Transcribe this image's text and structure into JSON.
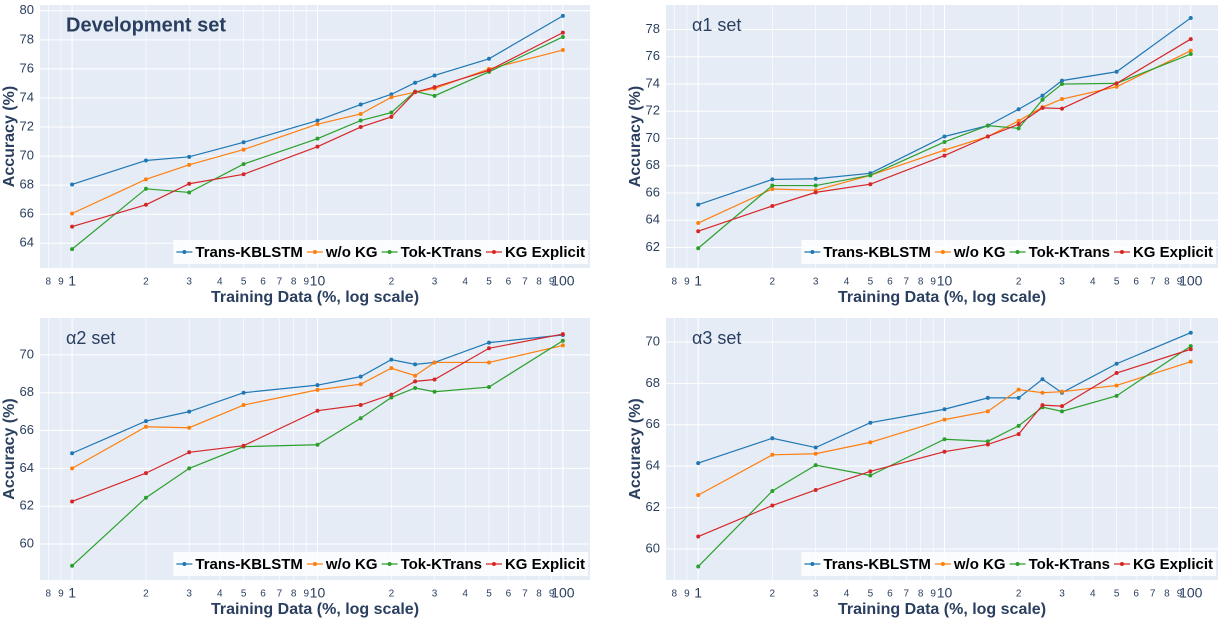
{
  "chart_data": [
    {
      "type": "line",
      "title": "Development set",
      "x_label": "Training Data (%, log scale)",
      "y_label": "Accuracy (%)",
      "xscale": "log",
      "grid": true,
      "legend": "lower right",
      "x": [
        1,
        2,
        3,
        5,
        10,
        15,
        20,
        25,
        30,
        50,
        100
      ],
      "xlim": [
        0.74,
        129
      ],
      "xticks": [
        {
          "value": 0.8,
          "label": "8"
        },
        {
          "value": 0.9,
          "label": "9"
        },
        1,
        {
          "value": 2,
          "label": "2"
        },
        {
          "value": 3,
          "label": "3"
        },
        {
          "value": 4,
          "label": "4"
        },
        {
          "value": 5,
          "label": "5"
        },
        {
          "value": 6,
          "label": "6"
        },
        {
          "value": 7,
          "label": "7"
        },
        {
          "value": 8,
          "label": "8"
        },
        {
          "value": 9,
          "label": "9"
        },
        10,
        {
          "value": 20,
          "label": "2"
        },
        {
          "value": 30,
          "label": "3"
        },
        {
          "value": 40,
          "label": "4"
        },
        {
          "value": 50,
          "label": "5"
        },
        {
          "value": 60,
          "label": "6"
        },
        {
          "value": 70,
          "label": "7"
        },
        {
          "value": 80,
          "label": "8"
        },
        {
          "value": 90,
          "label": "9"
        },
        100
      ],
      "ylim": [
        62.3,
        80.4
      ],
      "yticks": [
        64,
        66,
        68,
        70,
        72,
        74,
        76,
        78,
        80
      ],
      "series": [
        {
          "name": "Trans-KBLSTM",
          "color": "#1f77b4",
          "values": [
            68.05,
            69.7,
            69.95,
            70.95,
            72.45,
            73.55,
            74.25,
            75.05,
            75.55,
            76.7,
            79.65
          ]
        },
        {
          "name": "w/o KG",
          "color": "#ff7f0e",
          "values": [
            66.05,
            68.4,
            69.4,
            70.45,
            72.2,
            72.9,
            74.05,
            74.4,
            74.65,
            76.0,
            77.3
          ]
        },
        {
          "name": "Tok-KTrans",
          "color": "#2ca02c",
          "values": [
            63.6,
            67.75,
            67.5,
            69.45,
            71.2,
            72.45,
            73.0,
            74.45,
            74.15,
            75.8,
            78.2
          ]
        },
        {
          "name": "KG Explicit",
          "color": "#d62728",
          "values": [
            65.15,
            66.65,
            68.1,
            68.75,
            70.65,
            72.0,
            72.7,
            74.4,
            74.75,
            75.9,
            78.5
          ]
        }
      ]
    },
    {
      "type": "line",
      "title": "α1 set",
      "x_label": "Training Data (%, log scale)",
      "y_label": "Accuracy (%)",
      "xscale": "log",
      "grid": true,
      "legend": "lower right",
      "x": [
        1,
        2,
        3,
        5,
        10,
        15,
        20,
        25,
        30,
        50,
        100
      ],
      "xlim": [
        0.74,
        129
      ],
      "xticks": [
        {
          "value": 0.8,
          "label": "8"
        },
        {
          "value": 0.9,
          "label": "9"
        },
        1,
        {
          "value": 2,
          "label": "2"
        },
        {
          "value": 3,
          "label": "3"
        },
        {
          "value": 4,
          "label": "4"
        },
        {
          "value": 5,
          "label": "5"
        },
        {
          "value": 6,
          "label": "6"
        },
        {
          "value": 7,
          "label": "7"
        },
        {
          "value": 8,
          "label": "8"
        },
        {
          "value": 9,
          "label": "9"
        },
        10,
        {
          "value": 20,
          "label": "2"
        },
        {
          "value": 30,
          "label": "3"
        },
        {
          "value": 40,
          "label": "4"
        },
        {
          "value": 50,
          "label": "5"
        },
        {
          "value": 60,
          "label": "6"
        },
        {
          "value": 70,
          "label": "7"
        },
        {
          "value": 80,
          "label": "8"
        },
        {
          "value": 90,
          "label": "9"
        },
        100
      ],
      "ylim": [
        60.5,
        79.8
      ],
      "yticks": [
        62,
        64,
        66,
        68,
        70,
        72,
        74,
        76,
        78
      ],
      "series": [
        {
          "name": "Trans-KBLSTM",
          "color": "#1f77b4",
          "values": [
            65.15,
            67.0,
            67.05,
            67.45,
            70.15,
            70.95,
            72.15,
            73.15,
            74.25,
            74.9,
            78.85
          ]
        },
        {
          "name": "w/o KG",
          "color": "#ff7f0e",
          "values": [
            63.8,
            66.3,
            66.2,
            67.3,
            69.15,
            70.15,
            71.3,
            72.3,
            72.9,
            73.8,
            76.45
          ]
        },
        {
          "name": "Tok-KTrans",
          "color": "#2ca02c",
          "values": [
            61.95,
            66.55,
            66.55,
            67.3,
            69.75,
            70.95,
            70.75,
            72.85,
            74.0,
            74.05,
            76.2
          ]
        },
        {
          "name": "KG Explicit",
          "color": "#d62728",
          "values": [
            63.2,
            65.05,
            66.05,
            66.65,
            68.75,
            70.15,
            71.05,
            72.25,
            72.2,
            74.05,
            77.3
          ]
        }
      ]
    },
    {
      "type": "line",
      "title": "α2 set",
      "x_label": "Training Data (%, log scale)",
      "y_label": "Accuracy (%)",
      "xscale": "log",
      "grid": true,
      "legend": "lower right",
      "x": [
        1,
        2,
        3,
        5,
        10,
        15,
        20,
        25,
        30,
        50,
        100
      ],
      "xlim": [
        0.74,
        129
      ],
      "xticks": [
        {
          "value": 0.8,
          "label": "8"
        },
        {
          "value": 0.9,
          "label": "9"
        },
        1,
        {
          "value": 2,
          "label": "2"
        },
        {
          "value": 3,
          "label": "3"
        },
        {
          "value": 4,
          "label": "4"
        },
        {
          "value": 5,
          "label": "5"
        },
        {
          "value": 6,
          "label": "6"
        },
        {
          "value": 7,
          "label": "7"
        },
        {
          "value": 8,
          "label": "8"
        },
        {
          "value": 9,
          "label": "9"
        },
        10,
        {
          "value": 20,
          "label": "2"
        },
        {
          "value": 30,
          "label": "3"
        },
        {
          "value": 40,
          "label": "4"
        },
        {
          "value": 50,
          "label": "5"
        },
        {
          "value": 60,
          "label": "6"
        },
        {
          "value": 70,
          "label": "7"
        },
        {
          "value": 80,
          "label": "8"
        },
        {
          "value": 90,
          "label": "9"
        },
        100
      ],
      "ylim": [
        58.1,
        71.95
      ],
      "yticks": [
        60,
        62,
        64,
        66,
        68,
        70
      ],
      "series": [
        {
          "name": "Trans-KBLSTM",
          "color": "#1f77b4",
          "values": [
            64.8,
            66.5,
            67.0,
            68.0,
            68.4,
            68.85,
            69.75,
            69.5,
            69.6,
            70.65,
            71.05
          ]
        },
        {
          "name": "w/o KG",
          "color": "#ff7f0e",
          "values": [
            64.0,
            66.2,
            66.15,
            67.35,
            68.15,
            68.45,
            69.3,
            68.9,
            69.6,
            69.6,
            70.5
          ]
        },
        {
          "name": "Tok-KTrans",
          "color": "#2ca02c",
          "values": [
            58.85,
            62.45,
            64.0,
            65.15,
            65.25,
            66.65,
            67.75,
            68.25,
            68.05,
            68.3,
            70.75
          ]
        },
        {
          "name": "KG Explicit",
          "color": "#d62728",
          "values": [
            62.25,
            63.75,
            64.85,
            65.2,
            67.05,
            67.35,
            67.9,
            68.6,
            68.7,
            70.35,
            71.1
          ]
        }
      ]
    },
    {
      "type": "line",
      "title": "α3 set",
      "x_label": "Training Data (%, log scale)",
      "y_label": "Accuracy (%)",
      "xscale": "log",
      "grid": true,
      "legend": "lower right",
      "x": [
        1,
        2,
        3,
        5,
        10,
        15,
        20,
        25,
        30,
        50,
        100
      ],
      "xlim": [
        0.74,
        129
      ],
      "xticks": [
        {
          "value": 0.8,
          "label": "8"
        },
        {
          "value": 0.9,
          "label": "9"
        },
        1,
        {
          "value": 2,
          "label": "2"
        },
        {
          "value": 3,
          "label": "3"
        },
        {
          "value": 4,
          "label": "4"
        },
        {
          "value": 5,
          "label": "5"
        },
        {
          "value": 6,
          "label": "6"
        },
        {
          "value": 7,
          "label": "7"
        },
        {
          "value": 8,
          "label": "8"
        },
        {
          "value": 9,
          "label": "9"
        },
        10,
        {
          "value": 20,
          "label": "2"
        },
        {
          "value": 30,
          "label": "3"
        },
        {
          "value": 40,
          "label": "4"
        },
        {
          "value": 50,
          "label": "5"
        },
        {
          "value": 60,
          "label": "6"
        },
        {
          "value": 70,
          "label": "7"
        },
        {
          "value": 80,
          "label": "8"
        },
        {
          "value": 90,
          "label": "9"
        },
        100
      ],
      "ylim": [
        58.5,
        71.16
      ],
      "yticks": [
        60,
        62,
        64,
        66,
        68,
        70
      ],
      "series": [
        {
          "name": "Trans-KBLSTM",
          "color": "#1f77b4",
          "values": [
            64.15,
            65.35,
            64.9,
            66.1,
            66.75,
            67.3,
            67.3,
            68.2,
            67.55,
            68.95,
            70.45
          ]
        },
        {
          "name": "w/o KG",
          "color": "#ff7f0e",
          "values": [
            62.6,
            64.55,
            64.6,
            65.15,
            66.25,
            66.65,
            67.7,
            67.55,
            67.6,
            67.9,
            69.05
          ]
        },
        {
          "name": "Tok-KTrans",
          "color": "#2ca02c",
          "values": [
            59.15,
            62.8,
            64.05,
            63.55,
            65.3,
            65.2,
            65.95,
            66.85,
            66.65,
            67.4,
            69.8
          ]
        },
        {
          "name": "KG Explicit",
          "color": "#d62728",
          "values": [
            60.6,
            62.1,
            62.85,
            63.75,
            64.7,
            65.05,
            65.55,
            66.95,
            66.9,
            68.5,
            69.65
          ]
        }
      ]
    }
  ]
}
